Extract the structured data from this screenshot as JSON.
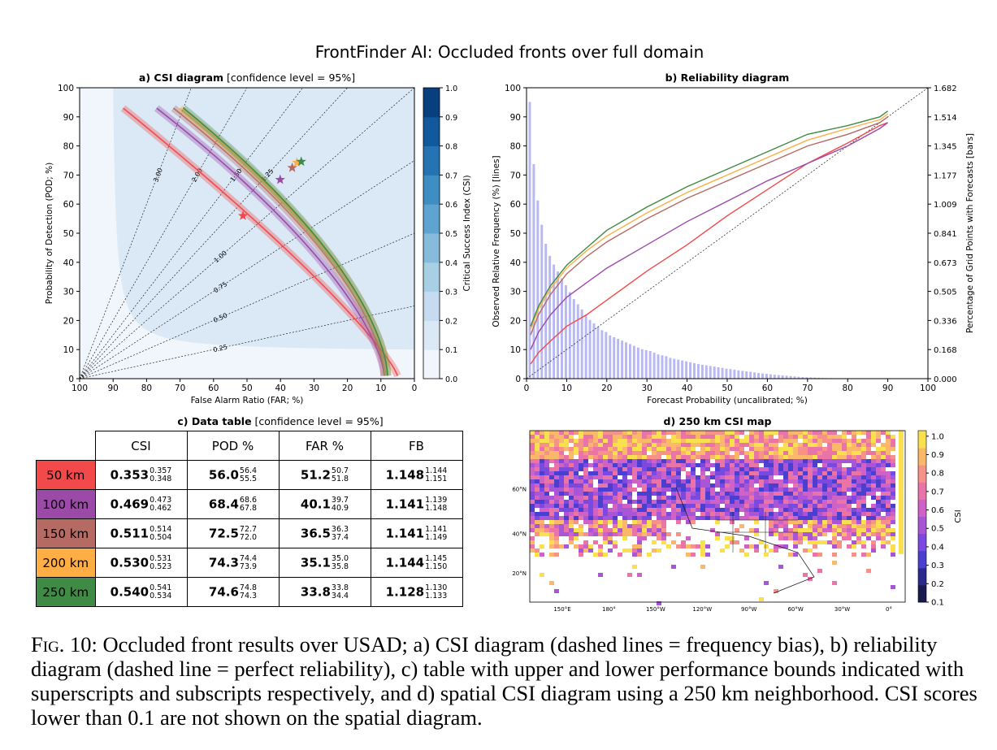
{
  "suptitle": "FrontFinder AI: Occluded fronts over full domain",
  "colors": {
    "50km": "#f24a4a",
    "100km": "#9b4aa8",
    "150km": "#b56a64",
    "200km": "#ffad45",
    "250km": "#3f8a45"
  },
  "chart_data": [
    {
      "type": "line",
      "panel": "a",
      "title_bold": "a) CSI diagram",
      "title_rest": " [confidence level = 95%]",
      "xlabel": "False Alarm Ratio (FAR; %)",
      "ylabel": "Probability of Detection (POD; %)",
      "xlim": [
        100,
        0
      ],
      "ylim": [
        0,
        100
      ],
      "x_ticks": [
        "100",
        "90",
        "80",
        "70",
        "60",
        "50",
        "40",
        "30",
        "20",
        "10",
        "0"
      ],
      "y_ticks": [
        "0",
        "10",
        "20",
        "30",
        "40",
        "50",
        "60",
        "70",
        "80",
        "90",
        "100"
      ],
      "colorbar_label": "Critical Success Index (CSI)",
      "colorbar_ticks": [
        "0.0",
        "0.1",
        "0.2",
        "0.3",
        "0.4",
        "0.5",
        "0.6",
        "0.7",
        "0.8",
        "0.9",
        "1.0"
      ],
      "bias_labels": [
        "0.25",
        "0.50",
        "0.75",
        "1.00",
        "1.25",
        "1.50",
        "2.00",
        "3.00"
      ],
      "series": [
        {
          "name": "50 km",
          "far_at_pod0": 5,
          "far_at_pod100": 87,
          "curvature": 1.2,
          "marker": {
            "far": 51.2,
            "pod": 56.0
          }
        },
        {
          "name": "100 km",
          "far_at_pod0": 9,
          "far_at_pod100": 77,
          "curvature": 1.5,
          "marker": {
            "far": 40.1,
            "pod": 68.4
          }
        },
        {
          "name": "150 km",
          "far_at_pod0": 9,
          "far_at_pod100": 72,
          "curvature": 1.6,
          "marker": {
            "far": 36.5,
            "pod": 72.5
          }
        },
        {
          "name": "200 km",
          "far_at_pod0": 8,
          "far_at_pod100": 70,
          "curvature": 1.6,
          "marker": {
            "far": 35.1,
            "pod": 74.3
          }
        },
        {
          "name": "250 km",
          "far_at_pod0": 8,
          "far_at_pod100": 69,
          "curvature": 1.6,
          "marker": {
            "far": 33.8,
            "pod": 74.6
          }
        }
      ]
    },
    {
      "type": "line",
      "panel": "b",
      "title_bold": "b) Reliability diagram",
      "xlabel": "Forecast Probability (uncalibrated; %)",
      "ylabel": "Observed Relative Frequency (%) [lines]",
      "ylabel_right": "Percentage of Grid Points with Forecasts [bars]",
      "xlim": [
        0,
        100
      ],
      "ylim": [
        0,
        100
      ],
      "x_ticks": [
        "0",
        "10",
        "20",
        "30",
        "40",
        "50",
        "60",
        "70",
        "80",
        "90",
        "100"
      ],
      "y_ticks": [
        "0",
        "10",
        "20",
        "30",
        "40",
        "50",
        "60",
        "70",
        "80",
        "90",
        "100"
      ],
      "y_ticks_right": [
        "0.000",
        "0.168",
        "0.336",
        "0.505",
        "0.673",
        "0.841",
        "1.009",
        "1.177",
        "1.345",
        "1.514",
        "1.682"
      ],
      "y_right_lim": [
        0,
        1.682
      ],
      "bars": [
        1.6,
        1.24,
        1.03,
        0.89,
        0.78,
        0.71,
        0.66,
        0.62,
        0.58,
        0.54,
        0.5,
        0.46,
        0.43,
        0.4,
        0.37,
        0.34,
        0.32,
        0.3,
        0.28,
        0.27,
        0.25,
        0.24,
        0.23,
        0.22,
        0.21,
        0.2,
        0.19,
        0.18,
        0.17,
        0.165,
        0.16,
        0.15,
        0.14,
        0.135,
        0.13,
        0.12,
        0.115,
        0.11,
        0.105,
        0.1,
        0.095,
        0.09,
        0.085,
        0.08,
        0.077,
        0.073,
        0.07,
        0.066,
        0.062,
        0.058,
        0.055,
        0.052,
        0.048,
        0.045,
        0.042,
        0.039,
        0.036,
        0.033,
        0.03,
        0.028,
        0.025,
        0.023,
        0.021,
        0.019,
        0.017,
        0.015,
        0.013,
        0.011,
        0.009,
        0.008,
        0.007,
        0.006,
        0.005,
        0.004,
        0.003,
        0.003,
        0.002,
        0.002,
        0.002,
        0.001
      ],
      "series": [
        {
          "name": "50 km",
          "x": [
            1,
            3,
            6,
            10,
            15,
            20,
            30,
            40,
            50,
            60,
            70,
            80,
            88,
            90
          ],
          "y": [
            5,
            9,
            13,
            18,
            22,
            27,
            37,
            46,
            56,
            65,
            74,
            81,
            87,
            88
          ]
        },
        {
          "name": "100 km",
          "x": [
            1,
            3,
            6,
            10,
            15,
            20,
            30,
            40,
            50,
            60,
            70,
            80,
            88,
            90
          ],
          "y": [
            10,
            16,
            22,
            28,
            33,
            38,
            46,
            54,
            61,
            68,
            74,
            80,
            86,
            88
          ]
        },
        {
          "name": "150 km",
          "x": [
            1,
            3,
            6,
            10,
            15,
            20,
            30,
            40,
            50,
            60,
            70,
            80,
            88,
            90
          ],
          "y": [
            15,
            22,
            29,
            36,
            42,
            47,
            55,
            62,
            68,
            74,
            80,
            84,
            88,
            90
          ]
        },
        {
          "name": "200 km",
          "x": [
            1,
            3,
            6,
            10,
            15,
            20,
            30,
            40,
            50,
            60,
            70,
            80,
            88,
            90
          ],
          "y": [
            17,
            24,
            31,
            38,
            44,
            49,
            57,
            64,
            70,
            76,
            82,
            86,
            89,
            91
          ]
        },
        {
          "name": "250 km",
          "x": [
            1,
            3,
            6,
            10,
            15,
            20,
            30,
            40,
            50,
            60,
            70,
            80,
            88,
            90
          ],
          "y": [
            18,
            25,
            32,
            39,
            45,
            51,
            59,
            66,
            72,
            78,
            84,
            87,
            90,
            92
          ]
        }
      ]
    },
    {
      "type": "table",
      "panel": "c",
      "title_bold": "c) Data table",
      "title_rest": " [confidence level = 95%]",
      "columns": [
        "CSI",
        "POD %",
        "FAR %",
        "FB"
      ],
      "rows": [
        {
          "label": "50 km",
          "color": "#f24a4a",
          "cells": [
            {
              "v": "0.353",
              "hi": "0.357",
              "lo": "0.348"
            },
            {
              "v": "56.0",
              "hi": "56.4",
              "lo": "55.5"
            },
            {
              "v": "51.2",
              "hi": "50.7",
              "lo": "51.8"
            },
            {
              "v": "1.148",
              "hi": "1.144",
              "lo": "1.151"
            }
          ]
        },
        {
          "label": "100 km",
          "color": "#9b4aa8",
          "cells": [
            {
              "v": "0.469",
              "hi": "0.473",
              "lo": "0.462"
            },
            {
              "v": "68.4",
              "hi": "68.6",
              "lo": "67.8"
            },
            {
              "v": "40.1",
              "hi": "39.7",
              "lo": "40.9"
            },
            {
              "v": "1.141",
              "hi": "1.139",
              "lo": "1.148"
            }
          ]
        },
        {
          "label": "150 km",
          "color": "#b56a64",
          "cells": [
            {
              "v": "0.511",
              "hi": "0.514",
              "lo": "0.504"
            },
            {
              "v": "72.5",
              "hi": "72.7",
              "lo": "72.0"
            },
            {
              "v": "36.5",
              "hi": "36.3",
              "lo": "37.4"
            },
            {
              "v": "1.141",
              "hi": "1.141",
              "lo": "1.149"
            }
          ]
        },
        {
          "label": "200 km",
          "color": "#ffad45",
          "cells": [
            {
              "v": "0.530",
              "hi": "0.531",
              "lo": "0.523"
            },
            {
              "v": "74.3",
              "hi": "74.4",
              "lo": "73.9"
            },
            {
              "v": "35.1",
              "hi": "35.0",
              "lo": "35.8"
            },
            {
              "v": "1.144",
              "hi": "1.145",
              "lo": "1.150"
            }
          ]
        },
        {
          "label": "250 km",
          "color": "#3f8a45",
          "cells": [
            {
              "v": "0.540",
              "hi": "0.541",
              "lo": "0.534"
            },
            {
              "v": "74.6",
              "hi": "74.8",
              "lo": "74.3"
            },
            {
              "v": "33.8",
              "hi": "33.8",
              "lo": "34.4"
            },
            {
              "v": "1.128",
              "hi": "1.130",
              "lo": "1.133"
            }
          ]
        }
      ]
    },
    {
      "type": "heatmap",
      "panel": "d",
      "title_bold": "d) 250 km CSI map",
      "colorbar_label": "CSI",
      "colorbar_ticks": [
        "0.1",
        "0.2",
        "0.3",
        "0.4",
        "0.5",
        "0.6",
        "0.7",
        "0.8",
        "0.9",
        "1.0"
      ],
      "lat_labels": [
        "60°N",
        "40°N",
        "20°N"
      ],
      "lon_labels": [
        "150°E",
        "180°",
        "150°W",
        "120°W",
        "90°W",
        "60°W",
        "30°W",
        "0°"
      ]
    }
  ],
  "caption": {
    "fig": "Fig. 10:",
    "text": " Occluded front results over USAD; a) CSI diagram (dashed lines = frequency bias), b) reliability diagram (dashed line = perfect reliability), c) table with upper and lower performance bounds indicated with superscripts and subscripts respectively, and d) spatial CSI diagram using a 250 km neighborhood. CSI scores lower than 0.1 are not shown on the spatial diagram."
  }
}
